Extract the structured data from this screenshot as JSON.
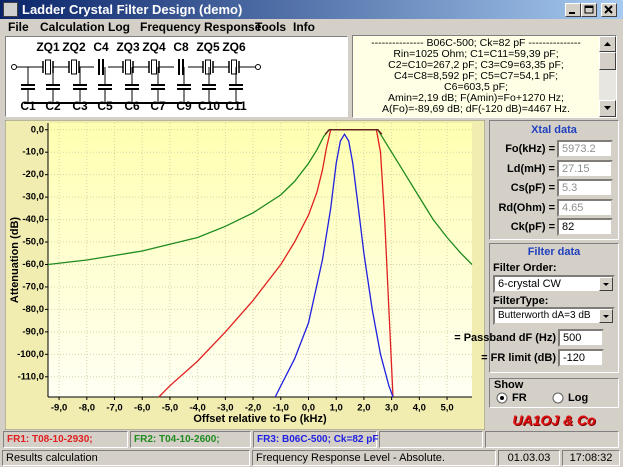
{
  "window": {
    "title": "Ladder Crystal Filter Design (demo)"
  },
  "menu": [
    "File",
    "Calculation",
    "Log",
    "Frequency Response",
    "Tools",
    "Info"
  ],
  "schematic": {
    "top_labels": [
      "ZQ1",
      "ZQ2",
      "C4",
      "ZQ3",
      "ZQ4",
      "C8",
      "ZQ5",
      "ZQ6"
    ],
    "bottom_labels": [
      "C1",
      "C2",
      "C3",
      "C5",
      "C6",
      "C7",
      "C9",
      "C10",
      "C11"
    ]
  },
  "info": {
    "lines": [
      "--------------- B06C-500; Ck=82 pF ---------------",
      "Rin=1025 Ohm; C1=C11=59,39 pF;",
      "C2=C10=267,2 pF; C3=C9=63,35 pF;",
      "C4=C8=8,592 pF; C5=C7=54,1 pF;",
      "C6=603,5 pF;",
      "Amin=2,19 dB; F(Amin)=Fo+1270 Hz;",
      "A(Fo)=-89,69 dB; dF(-120 dB)=4467 Hz."
    ]
  },
  "chart_data": {
    "type": "line",
    "x_label": "Offset relative to Fo (kHz)",
    "y_label": "Attenuation (dB)",
    "xlim": [
      -9.4,
      5.9
    ],
    "ylim": [
      -119,
      3
    ],
    "grid": true,
    "xticks": [
      {
        "value": -9,
        "label": "-9,0"
      },
      {
        "value": -8,
        "label": "-8,0"
      },
      {
        "value": -7,
        "label": "-7,0"
      },
      {
        "value": -6,
        "label": "-6,0"
      },
      {
        "value": -5,
        "label": "-5,0"
      },
      {
        "value": -4,
        "label": "-4,0"
      },
      {
        "value": -3,
        "label": "-3,0"
      },
      {
        "value": -2,
        "label": "-2,0"
      },
      {
        "value": -1,
        "label": "-1,0"
      },
      {
        "value": 0,
        "label": "0,0"
      },
      {
        "value": 1,
        "label": "1,0"
      },
      {
        "value": 2,
        "label": "2,0"
      },
      {
        "value": 3,
        "label": "3,0"
      },
      {
        "value": 4,
        "label": "4,0"
      },
      {
        "value": 5,
        "label": "5,0"
      }
    ],
    "yticks": [
      {
        "value": 0,
        "label": "0,0"
      },
      {
        "value": -10,
        "label": "-10,0"
      },
      {
        "value": -20,
        "label": "-20,0"
      },
      {
        "value": -30,
        "label": "-30,0"
      },
      {
        "value": -40,
        "label": "-40,0"
      },
      {
        "value": -50,
        "label": "-50,0"
      },
      {
        "value": -60,
        "label": "-60,0"
      },
      {
        "value": -70,
        "label": "-70,0"
      },
      {
        "value": -80,
        "label": "-80,0"
      },
      {
        "value": -90,
        "label": "-90,0"
      },
      {
        "value": -100,
        "label": "-100,0"
      },
      {
        "value": -110,
        "label": "-110,0"
      }
    ],
    "series": [
      {
        "name": "FR1: T08-10-2930;",
        "color": "#e02020",
        "x": [
          -5.4,
          -5,
          -4,
          -3,
          -2,
          -1,
          -0.5,
          0,
          0.3,
          0.5,
          0.65,
          0.8,
          2.45,
          2.6,
          2.75,
          2.9,
          3.05
        ],
        "values": [
          -119,
          -114,
          -103,
          -90,
          -76,
          -60,
          -50,
          -38,
          -28,
          -18,
          -8,
          0,
          0,
          -10,
          -40,
          -80,
          -119
        ]
      },
      {
        "name": "FR2: T04-10-2600;",
        "color": "#1f8a1f",
        "x": [
          -9.4,
          -8,
          -7,
          -6,
          -5,
          -4,
          -3,
          -2,
          -1,
          -0.5,
          0,
          0.3,
          0.55,
          0.75,
          2.5,
          2.7,
          3,
          3.5,
          4,
          4.5,
          5,
          5.5,
          5.9
        ],
        "values": [
          -60,
          -58,
          -56,
          -54,
          -51,
          -48,
          -43,
          -37,
          -29,
          -23,
          -15,
          -9,
          -3,
          0,
          0,
          -4,
          -10,
          -20,
          -30,
          -40,
          -48,
          -55,
          -60
        ]
      },
      {
        "name": "FR3: B06C-500; Ck=82 pF",
        "color": "#2020e0",
        "x": [
          -1.2,
          -1,
          -0.5,
          0,
          0.5,
          0.8,
          1,
          1.15,
          1.3,
          1.45,
          1.6,
          1.8,
          2,
          2.3,
          2.6,
          2.9,
          3.05
        ],
        "values": [
          -119,
          -114,
          -102,
          -86,
          -58,
          -35,
          -15,
          -5,
          -2,
          -5,
          -15,
          -35,
          -55,
          -80,
          -100,
          -114,
          -119
        ]
      },
      {
        "color": "#602020",
        "x": [
          0.6,
          0.75,
          2.5,
          2.65
        ],
        "values": [
          -2,
          0,
          0,
          -2
        ]
      }
    ]
  },
  "xtal_data": {
    "title": "Xtal data",
    "fields": [
      {
        "label": "Fo(kHz) =",
        "value": "5973.2"
      },
      {
        "label": "Ld(mH) =",
        "value": "27.15"
      },
      {
        "label": "Cs(pF) =",
        "value": "5.3"
      },
      {
        "label": "Rd(Ohm) =",
        "value": "4.65"
      },
      {
        "label": "Ck(pF) =",
        "value": "82"
      }
    ]
  },
  "filter_data": {
    "title": "Filter data",
    "order_label": "Filter Order:",
    "order": "6-crystal CW",
    "type_label": "FilterType:",
    "type": "Butterworth dA=3 dB",
    "passband_label": "Passband dF (Hz) =",
    "passband": "500",
    "fr_limit_label": "FR limit (dB) =",
    "fr_limit": "-120"
  },
  "show": {
    "title": "Show",
    "options": [
      "FR",
      "Log"
    ]
  },
  "logo": "UA1OJ & Co",
  "status": {
    "panels": [
      "Results calculation",
      "Frequency Response Level - Absolute.",
      "01.03.03",
      "17:08:32"
    ]
  }
}
